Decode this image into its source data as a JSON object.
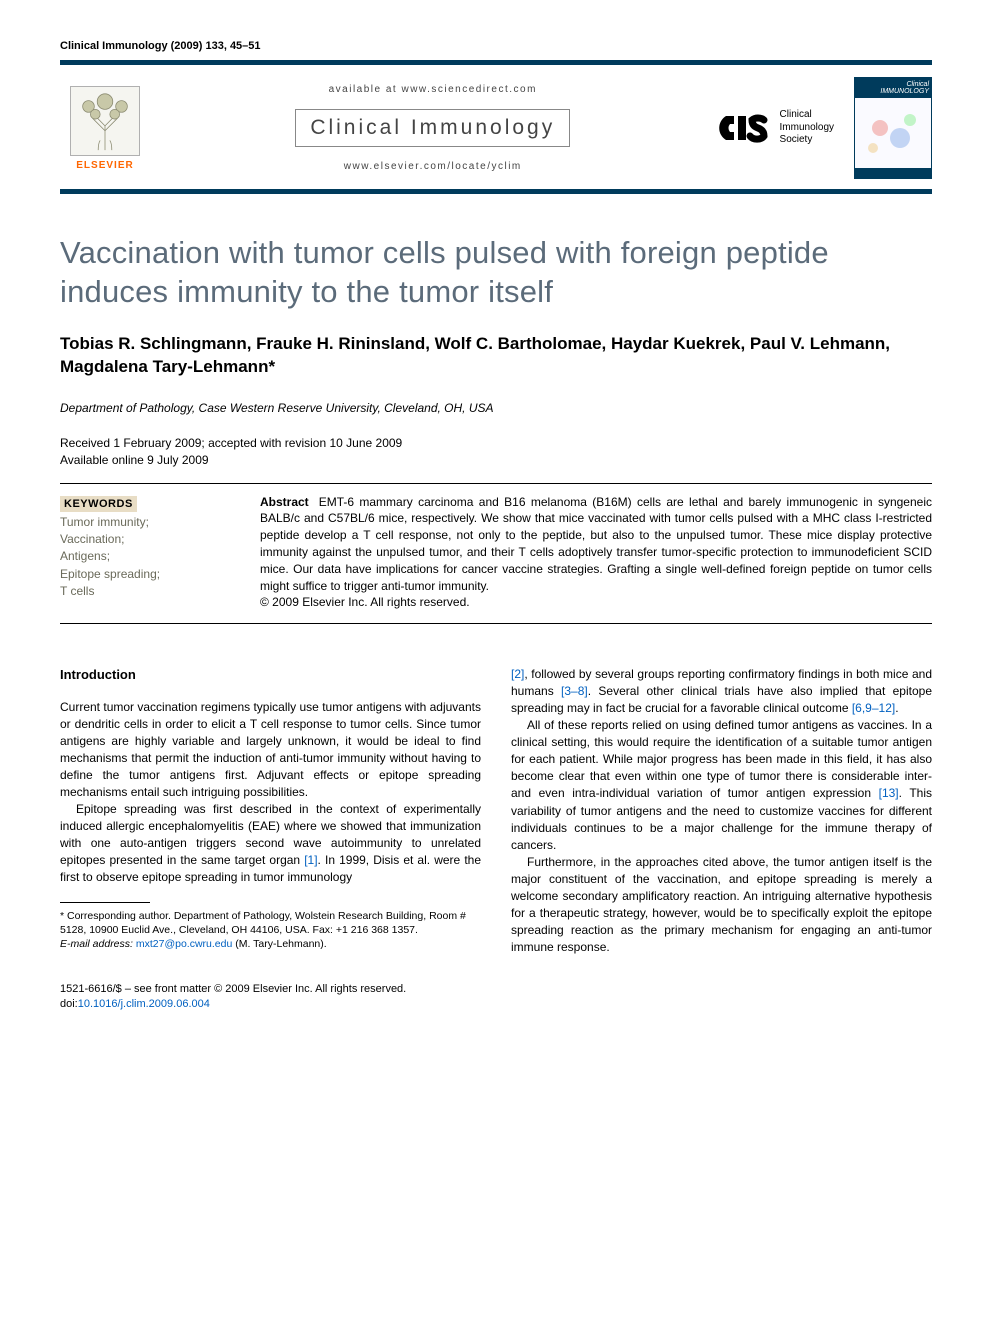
{
  "running_head": "Clinical Immunology (2009) 133, 45–51",
  "header": {
    "elsevier": "ELSEVIER",
    "available_at": "available at www.sciencedirect.com",
    "journal_name": "Clinical Immunology",
    "journal_url": "www.elsevier.com/locate/yclim",
    "cis_lines": [
      "Clinical",
      "Immunology",
      "Society"
    ],
    "cover_title": "Clinical IMMUNOLOGY"
  },
  "title": "Vaccination with tumor cells pulsed with foreign peptide induces immunity to the tumor itself",
  "authors": "Tobias R. Schlingmann, Frauke H. Rininsland, Wolf C. Bartholomae, Haydar Kuekrek, Paul V. Lehmann, Magdalena Tary-Lehmann*",
  "affiliation": "Department of Pathology, Case Western Reserve University, Cleveland, OH, USA",
  "dates": {
    "received": "Received 1 February 2009; accepted with revision 10 June 2009",
    "online": "Available online 9 July 2009"
  },
  "keywords": {
    "head": "KEYWORDS",
    "items": [
      "Tumor immunity;",
      "Vaccination;",
      "Antigens;",
      "Epitope spreading;",
      "T cells"
    ]
  },
  "abstract": {
    "label": "Abstract",
    "text": "EMT-6 mammary carcinoma and B16 melanoma (B16M) cells are lethal and barely immunogenic in syngeneic BALB/c and C57BL/6 mice, respectively. We show that mice vaccinated with tumor cells pulsed with a MHC class I-restricted peptide develop a T cell response, not only to the peptide, but also to the unpulsed tumor. These mice display protective immunity against the unpulsed tumor, and their T cells adoptively transfer tumor-specific protection to immunodeficient SCID mice. Our data have implications for cancer vaccine strategies. Grafting a single well-defined foreign peptide on tumor cells might suffice to trigger anti-tumor immunity.",
    "copyright": "© 2009 Elsevier Inc. All rights reserved."
  },
  "section_head": "Introduction",
  "left_paras": [
    "Current tumor vaccination regimens typically use tumor antigens with adjuvants or dendritic cells in order to elicit a T cell response to tumor cells. Since tumor antigens are highly variable and largely unknown, it would be ideal to find mechanisms that permit the induction of anti-tumor immunity without having to define the tumor antigens first. Adjuvant effects or epitope spreading mechanisms entail such intriguing possibilities.",
    "Epitope spreading was first described in the context of experimentally induced allergic encephalomyelitis (EAE) where we showed that immunization with one auto-antigen triggers second wave autoimmunity to unrelated epitopes presented in the same target organ [1]. In 1999, Disis et al. were the first to observe epitope spreading in tumor immunology"
  ],
  "right_paras": [
    "[2], followed by several groups reporting confirmatory findings in both mice and humans [3–8]. Several other clinical trials have also implied that epitope spreading may in fact be crucial for a favorable clinical outcome [6,9–12].",
    "All of these reports relied on using defined tumor antigens as vaccines. In a clinical setting, this would require the identification of a suitable tumor antigen for each patient. While major progress has been made in this field, it has also become clear that even within one type of tumor there is considerable inter- and even intra-individual variation of tumor antigen expression [13]. This variability of tumor antigens and the need to customize vaccines for different individuals continues to be a major challenge for the immune therapy of cancers.",
    "Furthermore, in the approaches cited above, the tumor antigen itself is the major constituent of the vaccination, and epitope spreading is merely a welcome secondary amplificatory reaction. An intriguing alternative hypothesis for a therapeutic strategy, however, would be to specifically exploit the epitope spreading reaction as the primary mechanism for engaging an anti-tumor immune response."
  ],
  "footnote": {
    "corr": "* Corresponding author. Department of Pathology, Wolstein Research Building, Room # 5128, 10900 Euclid Ave., Cleveland, OH 44106, USA. Fax: +1 216 368 1357.",
    "email_label": "E-mail address:",
    "email": "mxt27@po.cwru.edu",
    "email_who": "(M. Tary-Lehmann)."
  },
  "bottom": {
    "issn": "1521-6616/$ – see front matter © 2009 Elsevier Inc. All rights reserved.",
    "doi_label": "doi:",
    "doi": "10.1016/j.clim.2009.06.004"
  },
  "cites": {
    "c1": "[1]",
    "c2": "[2]",
    "c3_8": "[3–8]",
    "c6_9_12": "[6,9–12]",
    "c13": "[13]"
  },
  "colors": {
    "bar": "#003b5c",
    "title": "#5b6b7a",
    "link": "#0060c0",
    "kw_bg": "#e8ddc5",
    "elsevier": "#ff6600"
  }
}
